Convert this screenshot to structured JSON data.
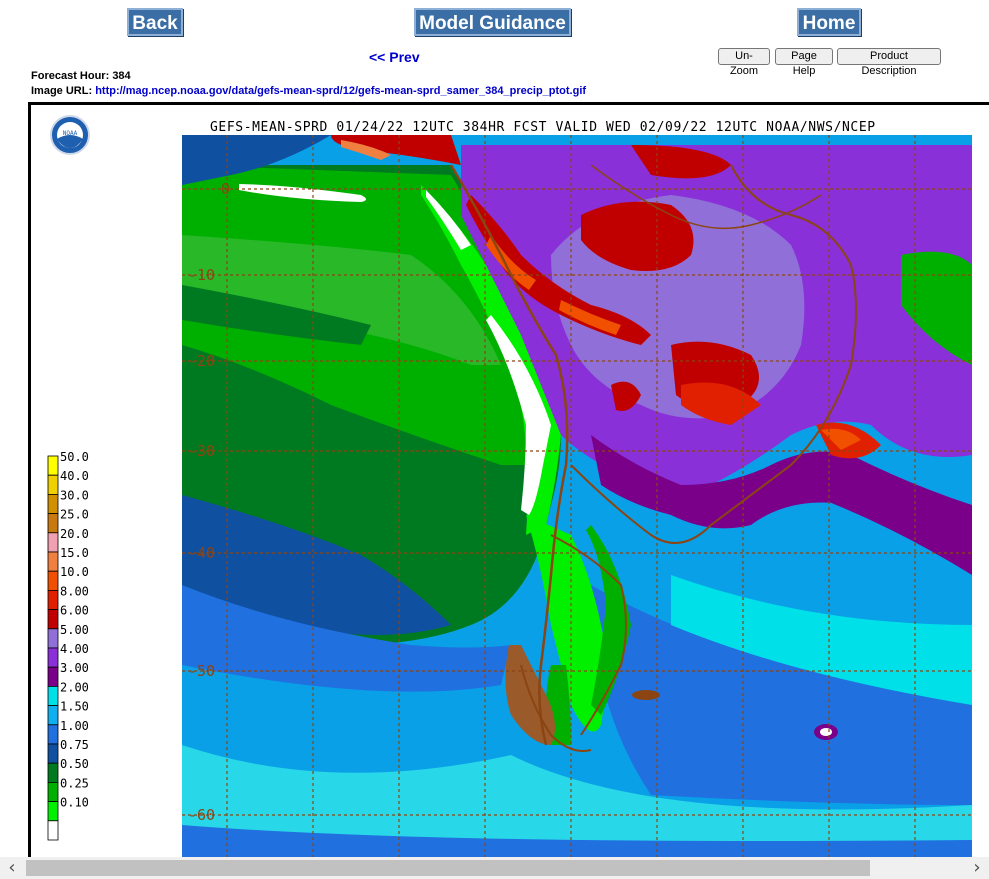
{
  "nav": {
    "back_label": "Back",
    "guidance_label": "Model Guidance",
    "home_label": "Home",
    "prev_label": "<< Prev"
  },
  "buttons": {
    "unzoom": "Un-Zoom",
    "page_help": "Page Help",
    "product_description": "Product Description"
  },
  "info": {
    "forecast_hour_label": "Forecast Hour:",
    "forecast_hour": "384",
    "image_url_label": "Image URL:",
    "image_url": "http://mag.ncep.noaa.gov/data/gefs-mean-sprd/12/gefs-mean-sprd_samer_384_precip_ptot.gif"
  },
  "map": {
    "title": "GEFS-MEAN-SPRD 01/24/22 12UTC 384HR FCST VALID WED 02/09/22 12UTC NOAA/NWS/NCEP",
    "logo_text": "NOAA",
    "lat_labels": [
      "0",
      "-10",
      "-20",
      "-30",
      "-40",
      "-50",
      "-60"
    ],
    "legend": [
      {
        "value": "50.0",
        "color": "#ffff00"
      },
      {
        "value": "40.0",
        "color": "#f0d000"
      },
      {
        "value": "30.0",
        "color": "#d09000"
      },
      {
        "value": "25.0",
        "color": "#c87a10"
      },
      {
        "value": "20.0",
        "color": "#f0a0b0"
      },
      {
        "value": "15.0",
        "color": "#f08040"
      },
      {
        "value": "10.0",
        "color": "#f05000"
      },
      {
        "value": "8.00",
        "color": "#e02000"
      },
      {
        "value": "6.00",
        "color": "#c00000"
      },
      {
        "value": "5.00",
        "color": "#9070d8"
      },
      {
        "value": "4.00",
        "color": "#8a30d8"
      },
      {
        "value": "3.00",
        "color": "#7a008a"
      },
      {
        "value": "2.00",
        "color": "#00e0e8"
      },
      {
        "value": "1.50",
        "color": "#10b0f0"
      },
      {
        "value": "1.00",
        "color": "#2070e0"
      },
      {
        "value": "0.75",
        "color": "#1050a0"
      },
      {
        "value": "0.50",
        "color": "#007a20"
      },
      {
        "value": "0.25",
        "color": "#00b000"
      },
      {
        "value": "0.10",
        "color": "#00f000"
      },
      {
        "value": "",
        "color": "#ffffff"
      }
    ]
  },
  "scrollbar": {
    "left_arrow": "‹",
    "right_arrow": "›"
  }
}
